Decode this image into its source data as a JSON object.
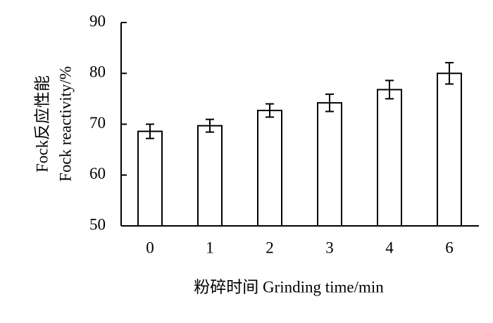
{
  "chart_data": {
    "type": "bar",
    "ylabel_lines": [
      "Fock反应性能",
      "Fock reactivity/%"
    ],
    "xlabel": "粉碎时间 Grinding time/min",
    "categories": [
      "0",
      "1",
      "2",
      "3",
      "4",
      "6"
    ],
    "values": [
      68.6,
      69.7,
      72.7,
      74.2,
      76.8,
      80.0
    ],
    "errors": [
      1.4,
      1.25,
      1.3,
      1.7,
      1.8,
      2.1
    ],
    "color": "#ffffff",
    "ylim": [
      50,
      90
    ],
    "yticks": [
      50,
      60,
      70,
      80,
      90
    ],
    "grid": false
  }
}
